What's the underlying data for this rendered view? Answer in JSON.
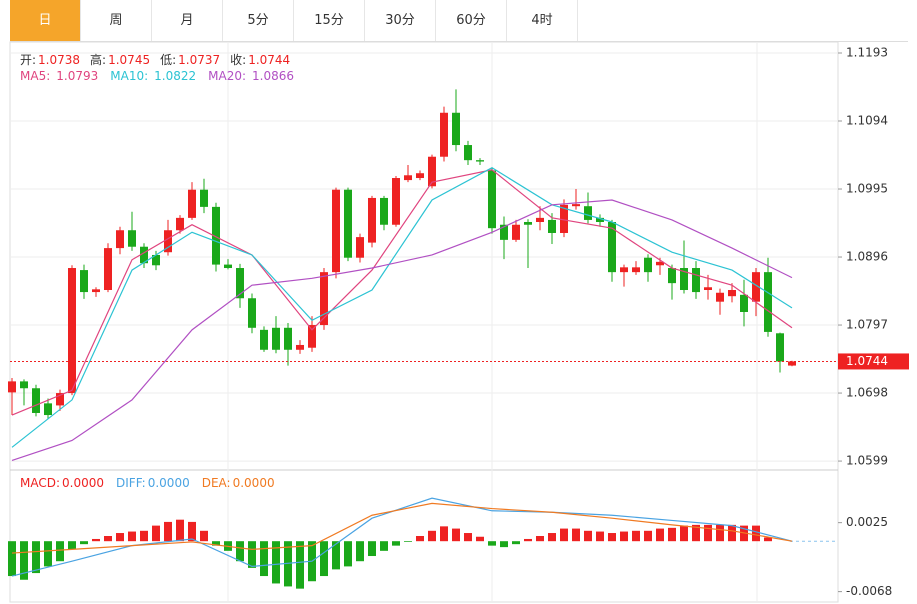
{
  "tabs": {
    "items": [
      "日",
      "周",
      "月",
      "5分",
      "15分",
      "30分",
      "60分",
      "4时"
    ],
    "active": 0
  },
  "chart_data": [
    {
      "type": "candlestick",
      "ohlc": [
        {
          "label": "开:",
          "value": 1.0738
        },
        {
          "label": "高:",
          "value": 1.0745
        },
        {
          "label": "低:",
          "value": 1.0737
        },
        {
          "label": "收:",
          "value": 1.0744
        }
      ],
      "candles": {
        "up_color": "#ee2222",
        "down_color": "#1aa81a",
        "open": [
          1.0699,
          1.0715,
          1.0705,
          1.0683,
          1.068,
          1.0698,
          1.0877,
          1.0845,
          1.0848,
          1.0909,
          1.0935,
          1.0911,
          1.0899,
          1.0903,
          1.0935,
          1.0953,
          1.0994,
          1.0969,
          1.0885,
          1.088,
          1.0836,
          1.079,
          1.0793,
          1.0793,
          1.0761,
          1.0764,
          1.0797,
          1.0874,
          1.0994,
          1.0895,
          1.0917,
          1.0982,
          1.0943,
          1.1008,
          1.1011,
          1.0999,
          1.1042,
          1.1106,
          1.1059,
          1.1037,
          1.1022,
          1.0943,
          1.0921,
          1.0947,
          1.0947,
          1.095,
          1.0931,
          1.097,
          1.097,
          1.0953,
          1.0947,
          1.0874,
          1.0874,
          1.0895,
          1.0884,
          1.088,
          1.088,
          1.088,
          1.0848,
          1.0831,
          1.0839,
          1.0841,
          1.0831,
          1.0874,
          1.0785,
          1.0738
        ],
        "high": [
          1.072,
          1.0718,
          1.071,
          1.069,
          1.0703,
          1.0884,
          1.0885,
          1.0852,
          1.0916,
          1.094,
          1.0962,
          1.0916,
          1.0905,
          1.095,
          1.0957,
          1.1005,
          1.101,
          1.0975,
          1.0893,
          1.0886,
          1.0843,
          1.0795,
          1.081,
          1.08,
          1.0775,
          1.081,
          1.088,
          1.0997,
          1.0997,
          1.093,
          1.0985,
          1.0985,
          1.1014,
          1.103,
          1.1022,
          1.1045,
          1.1115,
          1.114,
          1.1065,
          1.104,
          1.1025,
          1.0955,
          1.095,
          1.0951,
          1.097,
          1.096,
          1.098,
          1.0995,
          1.099,
          1.0958,
          1.095,
          1.0885,
          1.089,
          1.09,
          1.0895,
          1.0885,
          1.092,
          1.089,
          1.087,
          1.085,
          1.0858,
          1.0863,
          1.088,
          1.0895,
          1.0786,
          1.0745
        ],
        "low": [
          1.0666,
          1.068,
          1.0664,
          1.066,
          1.0672,
          1.0695,
          1.0835,
          1.0838,
          1.0845,
          1.09,
          1.0905,
          1.088,
          1.0877,
          1.0898,
          1.093,
          1.095,
          1.096,
          1.0875,
          1.0878,
          1.0822,
          1.0785,
          1.0758,
          1.0756,
          1.0738,
          1.0755,
          1.0758,
          1.079,
          1.0865,
          1.089,
          1.0888,
          1.091,
          1.0935,
          1.094,
          1.1005,
          1.1008,
          1.0996,
          1.1035,
          1.105,
          1.103,
          1.103,
          1.093,
          1.0893,
          1.0918,
          1.088,
          1.0935,
          1.0915,
          1.0925,
          1.0965,
          1.0945,
          1.094,
          1.086,
          1.0853,
          1.087,
          1.086,
          1.087,
          1.0834,
          1.0843,
          1.0835,
          1.0834,
          1.0812,
          1.083,
          1.0795,
          1.081,
          1.078,
          1.0728,
          1.0737
        ],
        "close": [
          1.0715,
          1.0705,
          1.0669,
          1.0666,
          1.0698,
          1.088,
          1.0845,
          1.0849,
          1.0909,
          1.0935,
          1.0911,
          1.0887,
          1.0884,
          1.0935,
          1.0953,
          1.0994,
          1.0969,
          1.0885,
          1.088,
          1.0836,
          1.0793,
          1.0761,
          1.0761,
          1.0761,
          1.0768,
          1.0797,
          1.0874,
          1.0994,
          1.0895,
          1.0925,
          1.0982,
          1.0943,
          1.1011,
          1.1015,
          1.1018,
          1.1042,
          1.1106,
          1.1059,
          1.1037,
          1.1035,
          1.0938,
          1.0921,
          1.0943,
          1.0943,
          1.0953,
          1.0931,
          1.0972,
          1.0973,
          1.095,
          1.0947,
          1.0874,
          1.0881,
          1.0881,
          1.0874,
          1.0889,
          1.0858,
          1.0848,
          1.0845,
          1.0852,
          1.0844,
          1.0848,
          1.0816,
          1.0874,
          1.0787,
          1.0744,
          1.0744
        ]
      },
      "series": [
        {
          "name": "MA5:",
          "color": "#e0457f",
          "x": [
            0,
            5,
            10,
            15,
            20,
            25,
            30,
            35,
            40,
            45,
            50,
            55,
            60,
            65
          ],
          "values": [
            1.0666,
            1.0702,
            1.0892,
            1.0943,
            1.0899,
            1.079,
            1.0877,
            1.1005,
            1.1023,
            1.0953,
            1.0938,
            1.088,
            1.0855,
            1.0793
          ]
        },
        {
          "name": "MA10:",
          "color": "#2cc3d3",
          "x": [
            0,
            5,
            10,
            15,
            20,
            25,
            30,
            35,
            40,
            45,
            50,
            55,
            60,
            65
          ],
          "values": [
            1.0619,
            1.0688,
            1.0877,
            1.0932,
            1.0899,
            1.0804,
            1.0848,
            1.0979,
            1.1026,
            1.0972,
            1.0947,
            1.0903,
            1.0877,
            1.0822
          ]
        },
        {
          "name": "MA20:",
          "color": "#b150c3",
          "x": [
            0,
            5,
            10,
            15,
            20,
            25,
            30,
            35,
            40,
            45,
            50,
            55,
            60,
            65
          ],
          "values": [
            1.06,
            1.0629,
            1.0688,
            1.079,
            1.0855,
            1.0865,
            1.088,
            1.0899,
            1.0932,
            1.0972,
            1.0979,
            1.095,
            1.0909,
            1.0866
          ]
        }
      ],
      "last_price": 1.0744,
      "ylim": [
        1.0586,
        1.1209
      ],
      "yticks": [
        1.1193,
        1.1094,
        1.0995,
        1.0896,
        1.0797,
        1.0698,
        1.0599
      ],
      "grid": true
    },
    {
      "type": "macd",
      "series": [
        {
          "name": "MACD:",
          "up_color": "#ee2222",
          "down_color": "#1aa81a",
          "values": [
            -0.0047,
            -0.0052,
            -0.0043,
            -0.0034,
            -0.0027,
            -0.0011,
            -0.0004,
            0.0003,
            0.0007,
            0.0011,
            0.0013,
            0.0014,
            0.0021,
            0.0026,
            0.0029,
            0.0026,
            0.0014,
            -0.0006,
            -0.0013,
            -0.0027,
            -0.0036,
            -0.0047,
            -0.0057,
            -0.0061,
            -0.0064,
            -0.0054,
            -0.0047,
            -0.0038,
            -0.0034,
            -0.0027,
            -0.002,
            -0.0013,
            -0.0006,
            -0.0001,
            0.0007,
            0.0014,
            0.002,
            0.0017,
            0.0011,
            0.0006,
            -0.0006,
            -0.0008,
            -0.0004,
            0.0003,
            0.0007,
            0.0011,
            0.0017,
            0.0017,
            0.0014,
            0.0013,
            0.0011,
            0.0013,
            0.0014,
            0.0014,
            0.0017,
            0.0018,
            0.0021,
            0.0022,
            0.0022,
            0.0022,
            0.0022,
            0.0021,
            0.0021,
            0.0005,
            0,
            0
          ]
        },
        {
          "name": "DIFF:",
          "color": "#4aa3e2",
          "x": [
            0,
            5,
            10,
            15,
            20,
            25,
            30,
            35,
            40,
            45,
            50,
            55,
            60,
            65
          ],
          "values": [
            -0.0047,
            -0.0027,
            -0.0006,
            0.0003,
            -0.0034,
            -0.0027,
            0.0031,
            0.0058,
            0.0041,
            0.0039,
            0.0035,
            0.0028,
            0.0021,
            0
          ]
        },
        {
          "name": "DEA:",
          "color": "#f07a22",
          "x": [
            0,
            5,
            10,
            15,
            20,
            25,
            30,
            35,
            40,
            45,
            50,
            55,
            60,
            65
          ],
          "values": [
            -0.0016,
            -0.0011,
            -0.0006,
            -0.0001,
            -0.0011,
            -0.0006,
            0.0035,
            0.0051,
            0.0044,
            0.0039,
            0.0031,
            0.0022,
            0.0014,
            0
          ]
        }
      ],
      "legend_values": [
        {
          "value": 0,
          "label": "0.0000"
        },
        {
          "value": 0,
          "label": "0.0000"
        },
        {
          "value": 0,
          "label": "0.0000"
        }
      ],
      "ylim": [
        -0.0082,
        0.0096
      ],
      "yticks": [
        0.0025,
        -0.0068
      ]
    }
  ]
}
